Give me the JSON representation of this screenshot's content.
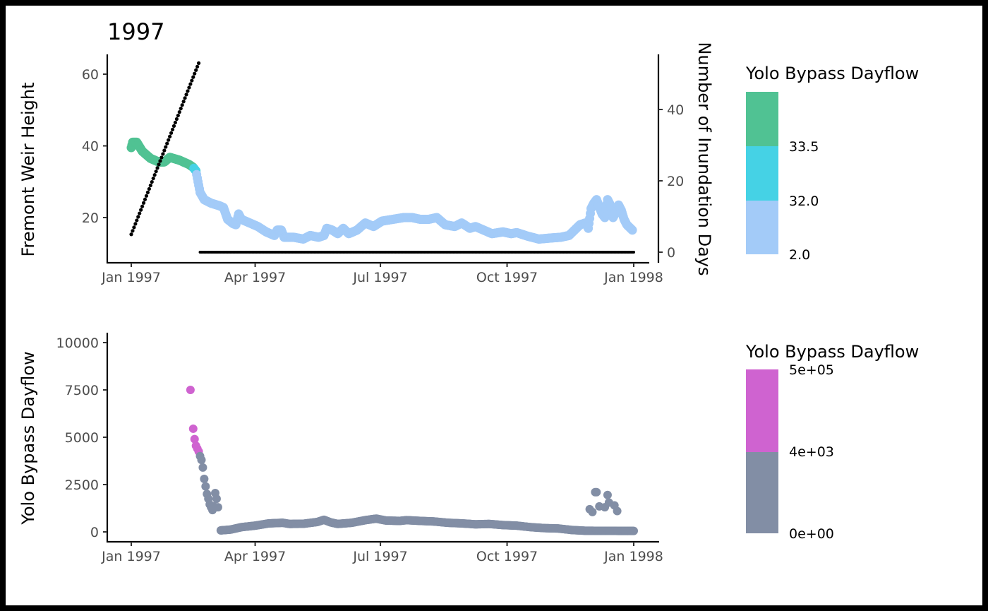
{
  "chart_data": [
    {
      "type": "scatter",
      "title": "1997",
      "xlabel": "",
      "ylabel": "Fremont Weir Height",
      "y2label": "Number of Inundation Days",
      "x_ticks": [
        "Jan 1997",
        "Apr 1997",
        "Jul 1997",
        "Oct 1997",
        "Jan 1998"
      ],
      "x_tick_days": [
        0,
        90,
        181,
        273,
        365
      ],
      "y_ticks": [
        20,
        40,
        60
      ],
      "y_range": [
        8.5,
        65.5
      ],
      "y2_ticks": [
        0,
        20,
        40
      ],
      "legend": {
        "title": "Yolo Bypass Dayflow",
        "labels": [
          "33.5",
          "32.0",
          "2.0"
        ],
        "colors": [
          "#50c293",
          "#45d2e5",
          "#a3cbf8"
        ]
      },
      "height_keyframes_day_value": [
        [
          0,
          39.5
        ],
        [
          1,
          41
        ],
        [
          4,
          41
        ],
        [
          8,
          38.5
        ],
        [
          14,
          36.5
        ],
        [
          20,
          35.5
        ],
        [
          24,
          35.5
        ],
        [
          28,
          36.8
        ],
        [
          35,
          36
        ],
        [
          42,
          34.8
        ],
        [
          45,
          34
        ],
        [
          47,
          33
        ],
        [
          48,
          31
        ],
        [
          49,
          29
        ],
        [
          50,
          27
        ],
        [
          53,
          25
        ],
        [
          58,
          24
        ],
        [
          64,
          23.3
        ],
        [
          67,
          22.8
        ],
        [
          70,
          19.5
        ],
        [
          74,
          18.3
        ],
        [
          76,
          18
        ],
        [
          78,
          21
        ],
        [
          80,
          19.5
        ],
        [
          86,
          18.5
        ],
        [
          92,
          17.5
        ],
        [
          98,
          16
        ],
        [
          104,
          15
        ],
        [
          106,
          16.5
        ],
        [
          109,
          16.5
        ],
        [
          111,
          14.5
        ],
        [
          118,
          14.5
        ],
        [
          125,
          14
        ],
        [
          130,
          15
        ],
        [
          136,
          14.5
        ],
        [
          140,
          15
        ],
        [
          142,
          17
        ],
        [
          146,
          16.5
        ],
        [
          150,
          15.5
        ],
        [
          154,
          17
        ],
        [
          158,
          15.5
        ],
        [
          164,
          16.5
        ],
        [
          170,
          18.5
        ],
        [
          176,
          17.5
        ],
        [
          182,
          19
        ],
        [
          190,
          19.5
        ],
        [
          198,
          20
        ],
        [
          204,
          20
        ],
        [
          210,
          19.5
        ],
        [
          216,
          19.5
        ],
        [
          222,
          20
        ],
        [
          228,
          18
        ],
        [
          235,
          17.5
        ],
        [
          240,
          18.5
        ],
        [
          246,
          17
        ],
        [
          250,
          17.5
        ],
        [
          256,
          16.5
        ],
        [
          262,
          15.5
        ],
        [
          270,
          16
        ],
        [
          276,
          15.5
        ],
        [
          280,
          15.8
        ],
        [
          288,
          14.8
        ],
        [
          296,
          14
        ],
        [
          305,
          14.3
        ],
        [
          312,
          14.5
        ],
        [
          318,
          15
        ],
        [
          322,
          16.5
        ],
        [
          326,
          18
        ],
        [
          330,
          18.5
        ],
        [
          332,
          17
        ],
        [
          334,
          22.5
        ],
        [
          336,
          24
        ],
        [
          338,
          25
        ],
        [
          340,
          23
        ],
        [
          342,
          21
        ],
        [
          344,
          20
        ],
        [
          346,
          25
        ],
        [
          348,
          23.5
        ],
        [
          350,
          20
        ],
        [
          352,
          21.5
        ],
        [
          354,
          23.5
        ],
        [
          356,
          22
        ],
        [
          358,
          19.5
        ],
        [
          360,
          18
        ],
        [
          364,
          16.5
        ]
      ],
      "color_breaks_day": {
        "green_until": 45,
        "cyan_until": 47
      },
      "inundation_days": {
        "rise": {
          "start_day": 0,
          "end_day": 49,
          "start_value": 5,
          "end_value": 53
        },
        "flat": {
          "start_day": 50,
          "end_day": 365,
          "value": 0
        }
      }
    },
    {
      "type": "scatter",
      "title": "",
      "xlabel": "",
      "ylabel": "Yolo Bypass Dayflow",
      "x_ticks": [
        "Jan 1997",
        "Apr 1997",
        "Jul 1997",
        "Oct 1997",
        "Jan 1998"
      ],
      "x_tick_days": [
        0,
        90,
        181,
        273,
        365
      ],
      "y_ticks": [
        "0",
        "2500",
        "5000",
        "7500",
        "10000"
      ],
      "y_tick_values": [
        0,
        2500,
        5000,
        7500,
        10000
      ],
      "y_range": [
        -500,
        10500
      ],
      "legend": {
        "title": "Yolo Bypass Dayflow",
        "labels": [
          "5e+05",
          "4e+03",
          "0e+00"
        ],
        "colors": [
          "#cf63d0",
          "#828ea5"
        ]
      },
      "magenta_threshold": 4100,
      "dayflow_points_day_value": [
        [
          43,
          7500
        ],
        [
          45,
          5450
        ],
        [
          46,
          4900
        ],
        [
          47,
          4550
        ],
        [
          48,
          4400
        ],
        [
          49,
          4250
        ],
        [
          50,
          4000
        ],
        [
          51,
          3800
        ],
        [
          52,
          3400
        ],
        [
          53,
          2800
        ],
        [
          54,
          2400
        ],
        [
          55,
          2000
        ],
        [
          56,
          1750
        ],
        [
          57,
          1450
        ],
        [
          58,
          1300
        ],
        [
          59,
          1150
        ],
        [
          60,
          1350
        ],
        [
          61,
          2050
        ],
        [
          62,
          1750
        ],
        [
          63,
          1300
        ]
      ],
      "dayflow_baseline_keyframes": [
        [
          65,
          80
        ],
        [
          72,
          120
        ],
        [
          80,
          250
        ],
        [
          90,
          330
        ],
        [
          100,
          450
        ],
        [
          110,
          480
        ],
        [
          115,
          420
        ],
        [
          125,
          430
        ],
        [
          135,
          520
        ],
        [
          140,
          640
        ],
        [
          145,
          500
        ],
        [
          150,
          420
        ],
        [
          160,
          480
        ],
        [
          170,
          620
        ],
        [
          178,
          700
        ],
        [
          185,
          600
        ],
        [
          195,
          580
        ],
        [
          200,
          620
        ],
        [
          210,
          580
        ],
        [
          220,
          550
        ],
        [
          230,
          480
        ],
        [
          240,
          450
        ],
        [
          250,
          400
        ],
        [
          260,
          420
        ],
        [
          270,
          360
        ],
        [
          280,
          330
        ],
        [
          290,
          250
        ],
        [
          300,
          200
        ],
        [
          310,
          180
        ],
        [
          320,
          100
        ],
        [
          330,
          60
        ],
        [
          365,
          50
        ]
      ],
      "dayflow_cluster": [
        [
          333,
          1200
        ],
        [
          335,
          1050
        ],
        [
          337,
          2100
        ],
        [
          338,
          2100
        ],
        [
          340,
          1350
        ],
        [
          344,
          1300
        ],
        [
          346,
          1950
        ],
        [
          347,
          1550
        ],
        [
          351,
          1400
        ],
        [
          353,
          1100
        ]
      ]
    }
  ]
}
